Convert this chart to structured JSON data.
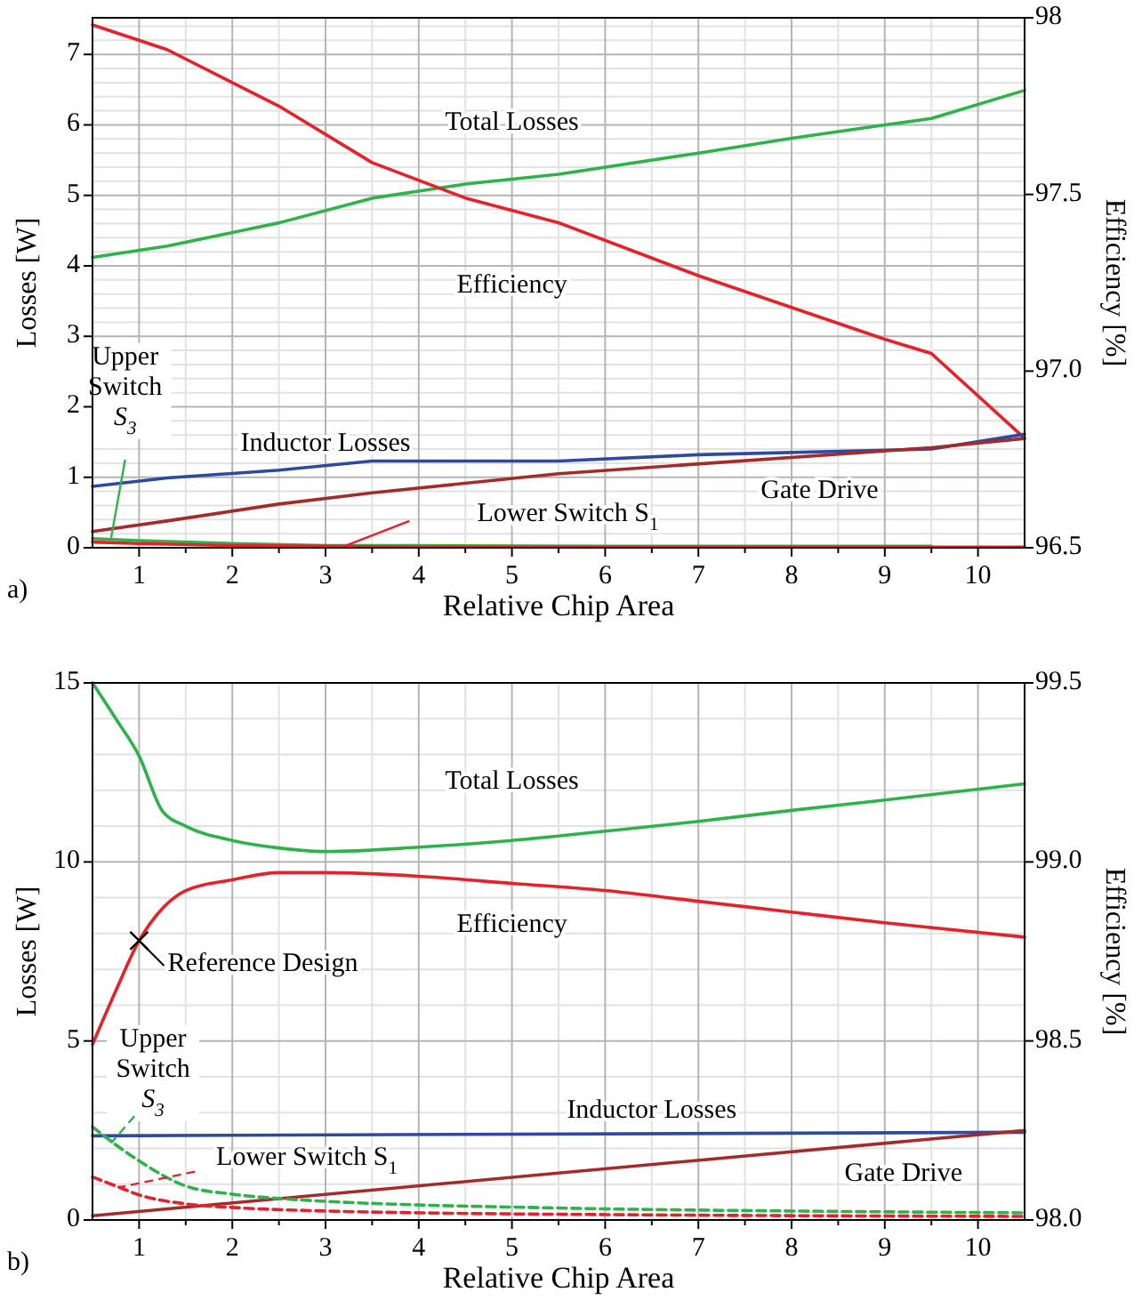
{
  "chart_data": [
    {
      "type": "line",
      "xlabel": "Relative Chip Area",
      "ylabel": "Losses [W]",
      "y2label": "Efficiency [%]",
      "annotations": [
        "a)"
      ],
      "xlim": [
        0.5,
        10.5
      ],
      "xticks": [
        1,
        2,
        3,
        4,
        5,
        6,
        7,
        8,
        9,
        10
      ],
      "ylim": [
        0,
        7.52
      ],
      "yticks": [
        0,
        1,
        2,
        3,
        4,
        5,
        6,
        7
      ],
      "y2lim": [
        96.5,
        98
      ],
      "y2ticks": [
        96.5,
        {
          "value": 97,
          "label": "97.0"
        },
        97.5,
        98
      ],
      "grid": true,
      "marker": "none",
      "series": [
        {
          "name": "Total Losses",
          "color": "#2db34a",
          "x": [
            0.5,
            1.3,
            2.5,
            3.5,
            4.5,
            5.5,
            7,
            8,
            9,
            9.5,
            10.5
          ],
          "values": [
            4.12,
            4.28,
            4.61,
            4.96,
            5.16,
            5.3,
            5.6,
            5.81,
            6.0,
            6.09,
            6.49
          ]
        },
        {
          "name": "Efficiency",
          "color": "#e8202a",
          "axis": "y2",
          "x": [
            0.5,
            1.3,
            2.5,
            3.5,
            4.5,
            5.5,
            7,
            8,
            9,
            9.5,
            10.5
          ],
          "values": [
            97.98,
            97.91,
            97.75,
            97.59,
            97.49,
            97.42,
            97.27,
            97.18,
            97.09,
            97.05,
            96.81
          ]
        },
        {
          "name": "Inductor Losses",
          "color": "#2e4a9e",
          "x": [
            0.5,
            1.3,
            2.5,
            3.5,
            5.5,
            7,
            9.5,
            10.5
          ],
          "values": [
            0.87,
            0.99,
            1.1,
            1.23,
            1.23,
            1.32,
            1.4,
            1.61
          ]
        },
        {
          "name": "Gate Drive",
          "color": "#a52a2a",
          "x": [
            0.5,
            1.3,
            2.5,
            3.5,
            5.5,
            9.5,
            10.5
          ],
          "values": [
            0.23,
            0.38,
            0.62,
            0.78,
            1.05,
            1.42,
            1.55
          ]
        },
        {
          "name": "Upper Switch S$_{3}$",
          "color": "#2db34a",
          "x": [
            0.5,
            1,
            2,
            3,
            4,
            6,
            8,
            9.5
          ],
          "values": [
            0.13,
            0.1,
            0.06,
            0.03,
            0.03,
            0.02,
            0.02,
            0.02
          ]
        },
        {
          "name": "Lower Switch S$_{1}$",
          "color": "#e8202a",
          "x": [
            0.5,
            1,
            2,
            3,
            4,
            6,
            8,
            10.5
          ],
          "values": [
            0.08,
            0.06,
            0.03,
            0.02,
            0.01,
            0.01,
            0.01,
            0.01
          ]
        }
      ]
    },
    {
      "type": "line",
      "xlabel": "Relative Chip Area",
      "ylabel": "Losses [W]",
      "y2label": "Efficiency [%]",
      "annotations": [
        "b)",
        {
          "text": "Reference Design",
          "x": 1,
          "y": 7.8
        }
      ],
      "xlim": [
        0.5,
        10.5
      ],
      "xticks": [
        1,
        2,
        3,
        4,
        5,
        6,
        7,
        8,
        9,
        10
      ],
      "ylim": [
        0,
        15
      ],
      "yticks": [
        0,
        5,
        10,
        15
      ],
      "y2lim": [
        98,
        99.5
      ],
      "y2ticks": [
        {
          "value": 98,
          "label": "98.0"
        },
        98.5,
        {
          "value": 99,
          "label": "99.0"
        },
        99.5
      ],
      "grid": true,
      "marker": "none",
      "series": [
        {
          "name": "Total Losses",
          "color": "#2db34a",
          "x": [
            0.5,
            0.75,
            1,
            1.25,
            1.5,
            2,
            2.5,
            3,
            4,
            5,
            6,
            7,
            8,
            9,
            10.5
          ],
          "values": [
            15.0,
            14.0,
            12.96,
            11.42,
            11.0,
            10.6,
            10.39,
            10.29,
            10.41,
            10.6,
            10.86,
            11.13,
            11.44,
            11.73,
            12.18
          ]
        },
        {
          "name": "Efficiency",
          "color": "#e8202a",
          "axis": "y2",
          "x": [
            0.5,
            0.75,
            1,
            1.25,
            1.5,
            2,
            2.5,
            3,
            4,
            5,
            6,
            7,
            8,
            9,
            10.5
          ],
          "values": [
            98.49,
            98.64,
            98.78,
            98.87,
            98.92,
            98.95,
            98.97,
            98.97,
            98.96,
            98.94,
            98.92,
            98.89,
            98.86,
            98.83,
            98.79
          ]
        },
        {
          "name": "Inductor Losses",
          "color": "#2e4a9e",
          "x": [
            0.5,
            10.5
          ],
          "values": [
            2.35,
            2.45
          ]
        },
        {
          "name": "Gate Drive",
          "color": "#a52a2a",
          "x": [
            0.5,
            10.5
          ],
          "values": [
            0.12,
            2.5
          ]
        },
        {
          "name": "Upper Switch S$_{3}$",
          "color": "#2db34a",
          "line_style": "dashed",
          "x": [
            0.5,
            0.75,
            1,
            1.5,
            2,
            2.5,
            3,
            4,
            5,
            6,
            8,
            10.5
          ],
          "values": [
            2.6,
            2.1,
            1.65,
            0.95,
            0.72,
            0.6,
            0.52,
            0.42,
            0.36,
            0.31,
            0.25,
            0.2
          ]
        },
        {
          "name": "Lower Switch S$_{1}$",
          "color": "#e8202a",
          "line_style": "dashed",
          "x": [
            0.5,
            0.75,
            1,
            1.5,
            2,
            3,
            4,
            6,
            8,
            10.5
          ],
          "values": [
            1.2,
            0.95,
            0.7,
            0.45,
            0.35,
            0.25,
            0.2,
            0.15,
            0.12,
            0.1
          ]
        }
      ]
    }
  ]
}
